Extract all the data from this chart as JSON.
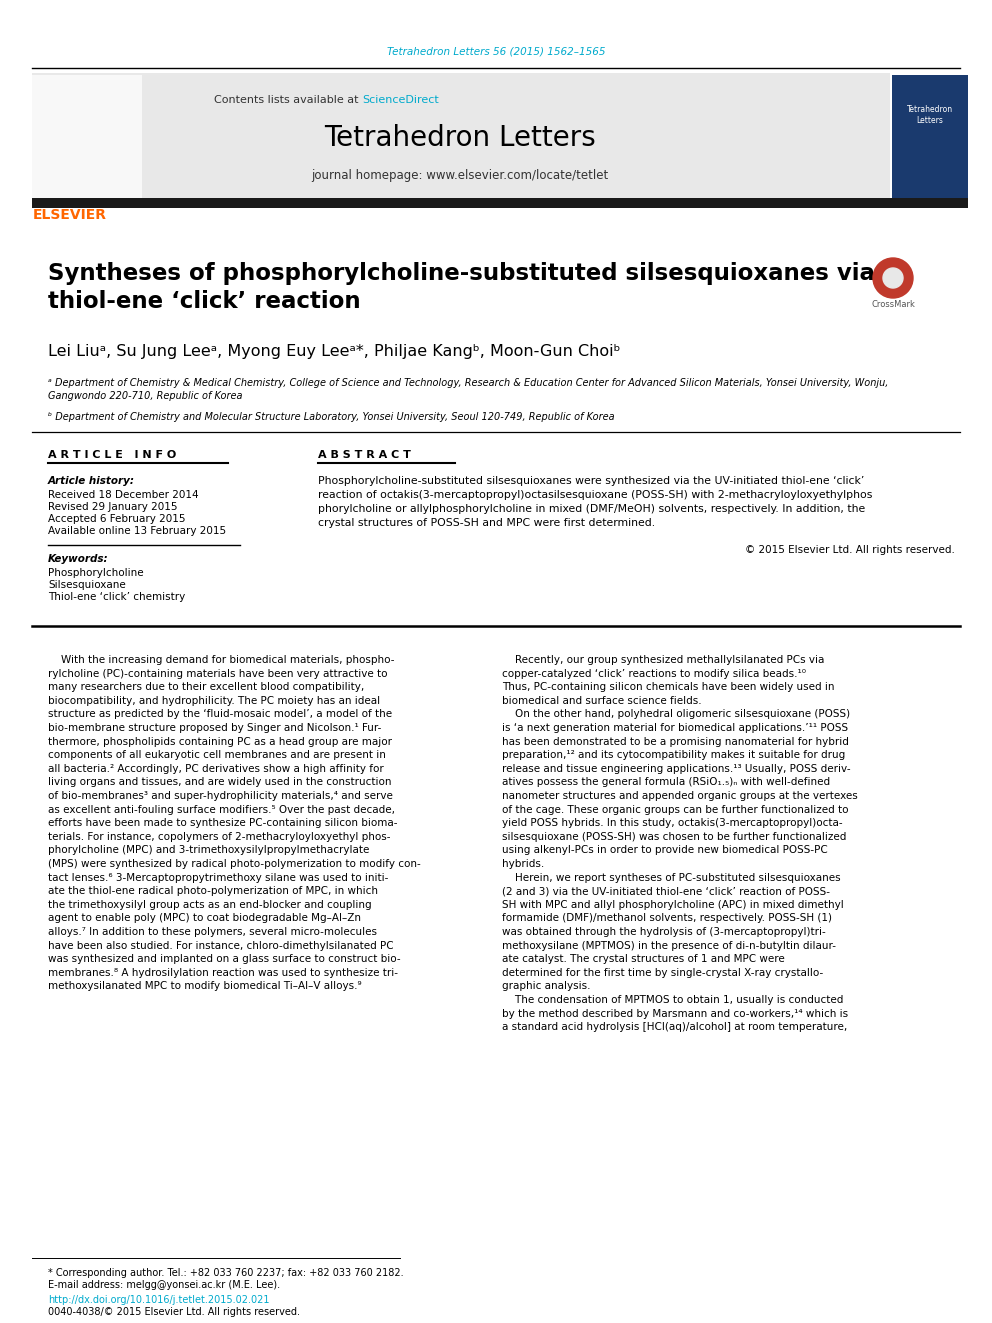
{
  "journal_ref": "Tetrahedron Letters 56 (2015) 1562–1565",
  "journal_ref_color": "#00aacc",
  "journal_name": "Tetrahedron Letters",
  "journal_homepage": "journal homepage: www.elsevier.com/locate/tetlet",
  "contents_text": "Contents lists available at ",
  "sciencedirect_text": "ScienceDirect",
  "sciencedirect_color": "#00aacc",
  "header_bg": "#e8e8e8",
  "black_bar_color": "#1a1a1a",
  "title": "Syntheses of phosphorylcholine-substituted silsesquioxanes via\nthiol-ene ‘click’ reaction",
  "authors": "Lei Liuᵃ, Su Jung Leeᵃ, Myong Euy Leeᵃ*, Philjae Kangᵇ, Moon-Gun Choiᵇ",
  "affil_a": "ᵃ Department of Chemistry & Medical Chemistry, College of Science and Technology, Research & Education Center for Advanced Silicon Materials, Yonsei University, Wonju,\nGangwondo 220-710, Republic of Korea",
  "affil_b": "ᵇ Department of Chemistry and Molecular Structure Laboratory, Yonsei University, Seoul 120-749, Republic of Korea",
  "article_info_header": "A R T I C L E   I N F O",
  "abstract_header": "A B S T R A C T",
  "article_history_label": "Article history:",
  "received": "Received 18 December 2014",
  "revised": "Revised 29 January 2015",
  "accepted": "Accepted 6 February 2015",
  "available": "Available online 13 February 2015",
  "keywords_label": "Keywords:",
  "keyword1": "Phosphorylcholine",
  "keyword2": "Silsesquioxane",
  "keyword3": "Thiol-ene ‘click’ chemistry",
  "abstract_text": "Phosphorylcholine-substituted silsesquioxanes were synthesized via the UV-initiated thiol-ene ‘click’\nreaction of octakis(3-mercaptopropyl)octasilsesquioxane (POSS-SH) with 2-methacryloyloxyethylphos\nphorylcholine or allylphosphorylcholine in mixed (DMF/MeOH) solvents, respectively. In addition, the\ncrystal structures of POSS-SH and MPC were first determined.",
  "copyright": "© 2015 Elsevier Ltd. All rights reserved.",
  "body_col1_para1": "    With the increasing demand for biomedical materials, phospho-\nrylcholine (PC)-containing materials have been very attractive to\nmany researchers due to their excellent blood compatibility,\nbiocompatibility, and hydrophilicity. The PC moiety has an ideal\nstructure as predicted by the ‘fluid-mosaic model’, a model of the\nbio-membrane structure proposed by Singer and Nicolson.¹ Fur-\nthermore, phospholipids containing PC as a head group are major\ncomponents of all eukaryotic cell membranes and are present in\nall bacteria.² Accordingly, PC derivatives show a high affinity for\nliving organs and tissues, and are widely used in the construction\nof bio-membranes³ and super-hydrophilicity materials,⁴ and serve\nas excellent anti-fouling surface modifiers.⁵ Over the past decade,\nefforts have been made to synthesize PC-containing silicon bioma-\nterials. For instance, copolymers of 2-methacryloyloxyethyl phos-\nphorylcholine (MPC) and 3-trimethoxysilylpropylmethacrylate\n(MPS) were synthesized by radical photo-polymerization to modify con-\ntact lenses.⁶ 3-Mercaptopropytrimethoxy silane was used to initi-\nate the thiol-ene radical photo-polymerization of MPC, in which\nthe trimethoxysilyl group acts as an end-blocker and coupling\nagent to enable poly (MPC) to coat biodegradable Mg–Al–Zn\nalloys.⁷ In addition to these polymers, several micro-molecules\nhave been also studied. For instance, chloro-dimethylsilanated PC\nwas synthesized and implanted on a glass surface to construct bio-\nmembranes.⁸ A hydrosilylation reaction was used to synthesize tri-\nmethoxysilanated MPC to modify biomedical Ti–Al–V alloys.⁹",
  "body_col2_para1": "    Recently, our group synthesized methallylsilanated PCs via\ncopper-catalyzed ‘click’ reactions to modify silica beads.¹⁰\nThus, PC-containing silicon chemicals have been widely used in\nbiomedical and surface science fields.\n    On the other hand, polyhedral oligomeric silsesquioxane (POSS)\nis ‘a next generation material for biomedical applications.’¹¹ POSS\nhas been demonstrated to be a promising nanomaterial for hybrid\npreparation,¹² and its cytocompatibility makes it suitable for drug\nrelease and tissue engineering applications.¹³ Usually, POSS deriv-\natives possess the general formula (RSiO₁.₅)ₙ with well-defined\nnanometer structures and appended organic groups at the vertexes\nof the cage. These organic groups can be further functionalized to\nyield POSS hybrids. In this study, octakis(3-mercaptopropyl)octa-\nsilsesquioxane (POSS-SH) was chosen to be further functionalized\nusing alkenyl-PCs in order to provide new biomedical POSS-PC\nhybrids.\n    Herein, we report syntheses of PC-substituted silsesquioxanes\n(2 and 3) via the UV-initiated thiol-ene ‘click’ reaction of POSS-\nSH with MPC and allyl phosphorylcholine (APC) in mixed dimethyl\nformamide (DMF)/methanol solvents, respectively. POSS-SH (1)\nwas obtained through the hydrolysis of (3-mercaptopropyl)tri-\nmethoxysilane (MPTMOS) in the presence of di-n-butyltin dilaur-\nate catalyst. The crystal structures of 1 and MPC were\ndetermined for the first time by single-crystal X-ray crystallo-\ngraphic analysis.\n    The condensation of MPTMOS to obtain 1, usually is conducted\nby the method described by Marsmann and co-workers,¹⁴ which is\na standard acid hydrolysis [HCl(aq)/alcohol] at room temperature,",
  "footer_text1": "* Corresponding author. Tel.: +82 033 760 2237; fax: +82 033 760 2182.",
  "footer_text2": "E-mail address: melgg@yonsei.ac.kr (M.E. Lee).",
  "footer_url": "http://dx.doi.org/10.1016/j.tetlet.2015.02.021",
  "footer_copy": "0040-4038/© 2015 Elsevier Ltd. All rights reserved.",
  "elsevier_color": "#ff6600",
  "bg_color": "#ffffff",
  "text_color": "#000000"
}
